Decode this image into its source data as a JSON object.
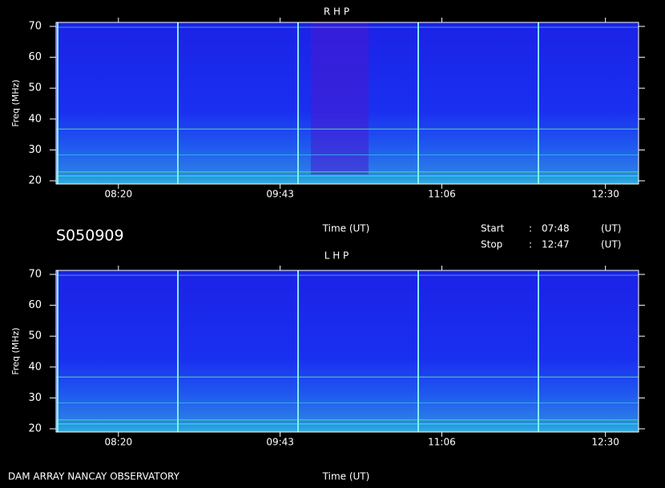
{
  "chart_data": [
    {
      "type": "spectrogram",
      "title": "R H P",
      "xlabel": "Time (UT)",
      "ylabel": "Freq (MHz)",
      "xlim": [
        468,
        767
      ],
      "xticks": [
        {
          "value": 500,
          "label": "08:20"
        },
        {
          "value": 583,
          "label": "09:43"
        },
        {
          "value": 666,
          "label": "11:06"
        },
        {
          "value": 750,
          "label": "12:30"
        }
      ],
      "ylim": [
        20,
        70
      ],
      "yticks": [
        20,
        30,
        40,
        50,
        60,
        70
      ]
    },
    {
      "type": "spectrogram",
      "title": "L H P",
      "xlabel": "Time (UT)",
      "ylabel": "Freq (MHz)",
      "xlim": [
        468,
        767
      ],
      "xticks": [
        {
          "value": 500,
          "label": "08:20"
        },
        {
          "value": 583,
          "label": "09:43"
        },
        {
          "value": 666,
          "label": "11:06"
        },
        {
          "value": 750,
          "label": "12:30"
        }
      ],
      "ylim": [
        20,
        70
      ],
      "yticks": [
        20,
        30,
        40,
        50,
        60,
        70
      ]
    }
  ],
  "header": {
    "id": "S050909",
    "start_label": "Start",
    "start_sep": ":",
    "start": "07:48",
    "start_unit": "(UT)",
    "stop_label": "Stop",
    "stop_sep": ":",
    "stop": "12:47",
    "stop_unit": "(UT)"
  },
  "footer": {
    "source": "DAM ARRAY  NANCAY OBSERVATORY"
  }
}
